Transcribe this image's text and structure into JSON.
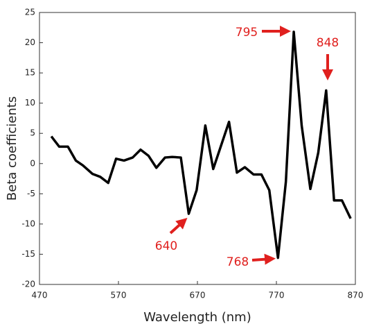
{
  "chart_data": {
    "type": "line",
    "xlabel": "Wavelength (nm)",
    "ylabel": "Beta coefficients",
    "x": [
      485,
      495,
      506,
      516,
      525,
      537,
      547,
      557,
      567,
      577,
      588,
      598,
      608,
      618,
      629,
      638,
      649,
      659,
      669,
      680,
      690,
      710,
      720,
      730,
      741,
      751,
      761,
      772,
      782,
      792,
      802,
      813,
      823,
      833,
      843,
      853,
      864
    ],
    "series": [
      {
        "name": "Beta",
        "color": "#000000",
        "values": [
          4.5,
          2.8,
          2.8,
          0.5,
          -0.3,
          -1.7,
          -2.2,
          -3.2,
          0.8,
          0.5,
          1.0,
          2.3,
          1.3,
          -0.7,
          1.0,
          1.1,
          1.0,
          -8.3,
          -4.4,
          6.3,
          -0.9,
          6.9,
          -1.5,
          -0.6,
          -1.8,
          -1.8,
          -4.4,
          -15.6,
          -3.0,
          21.8,
          6.3,
          -4.2,
          1.8,
          12.1,
          -6.1,
          -6.1,
          -9.1
        ]
      }
    ],
    "xlim": [
      470,
      870
    ],
    "xticks": [
      470,
      570,
      670,
      770,
      870
    ],
    "ylim": [
      -20,
      25
    ],
    "yticks": [
      -20,
      -15,
      -10,
      -5,
      0,
      5,
      10,
      15,
      20,
      25
    ],
    "annotations": [
      "795",
      "848",
      "640",
      "768"
    ]
  }
}
